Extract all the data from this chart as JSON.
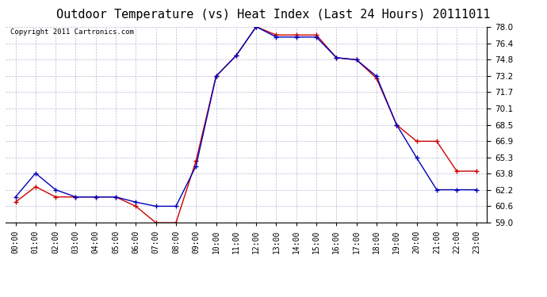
{
  "title": "Outdoor Temperature (vs) Heat Index (Last 24 Hours) 20111011",
  "copyright": "Copyright 2011 Cartronics.com",
  "hours": [
    "00:00",
    "01:00",
    "02:00",
    "03:00",
    "04:00",
    "05:00",
    "06:00",
    "07:00",
    "08:00",
    "09:00",
    "10:00",
    "11:00",
    "12:00",
    "13:00",
    "14:00",
    "15:00",
    "16:00",
    "17:00",
    "18:00",
    "19:00",
    "20:00",
    "21:00",
    "22:00",
    "23:00"
  ],
  "temp": [
    61.5,
    63.8,
    62.2,
    61.5,
    61.5,
    61.5,
    61.0,
    60.6,
    60.6,
    64.5,
    73.2,
    75.2,
    78.0,
    77.0,
    77.0,
    77.0,
    75.0,
    74.8,
    73.2,
    68.5,
    65.3,
    62.2,
    62.2,
    62.2
  ],
  "heat_index": [
    61.0,
    62.5,
    61.5,
    61.5,
    61.5,
    61.5,
    60.6,
    59.0,
    59.0,
    65.0,
    73.2,
    75.2,
    78.0,
    77.2,
    77.2,
    77.2,
    75.0,
    74.8,
    73.0,
    68.5,
    66.9,
    66.9,
    64.0,
    64.0
  ],
  "temp_color": "#0000bb",
  "heat_index_color": "#cc0000",
  "bg_color": "#ffffff",
  "grid_color": "#aaaacc",
  "ylim": [
    59.0,
    78.0
  ],
  "yticks": [
    59.0,
    60.6,
    62.2,
    63.8,
    65.3,
    66.9,
    68.5,
    70.1,
    71.7,
    73.2,
    74.8,
    76.4,
    78.0
  ],
  "title_fontsize": 11,
  "copyright_fontsize": 6.5
}
